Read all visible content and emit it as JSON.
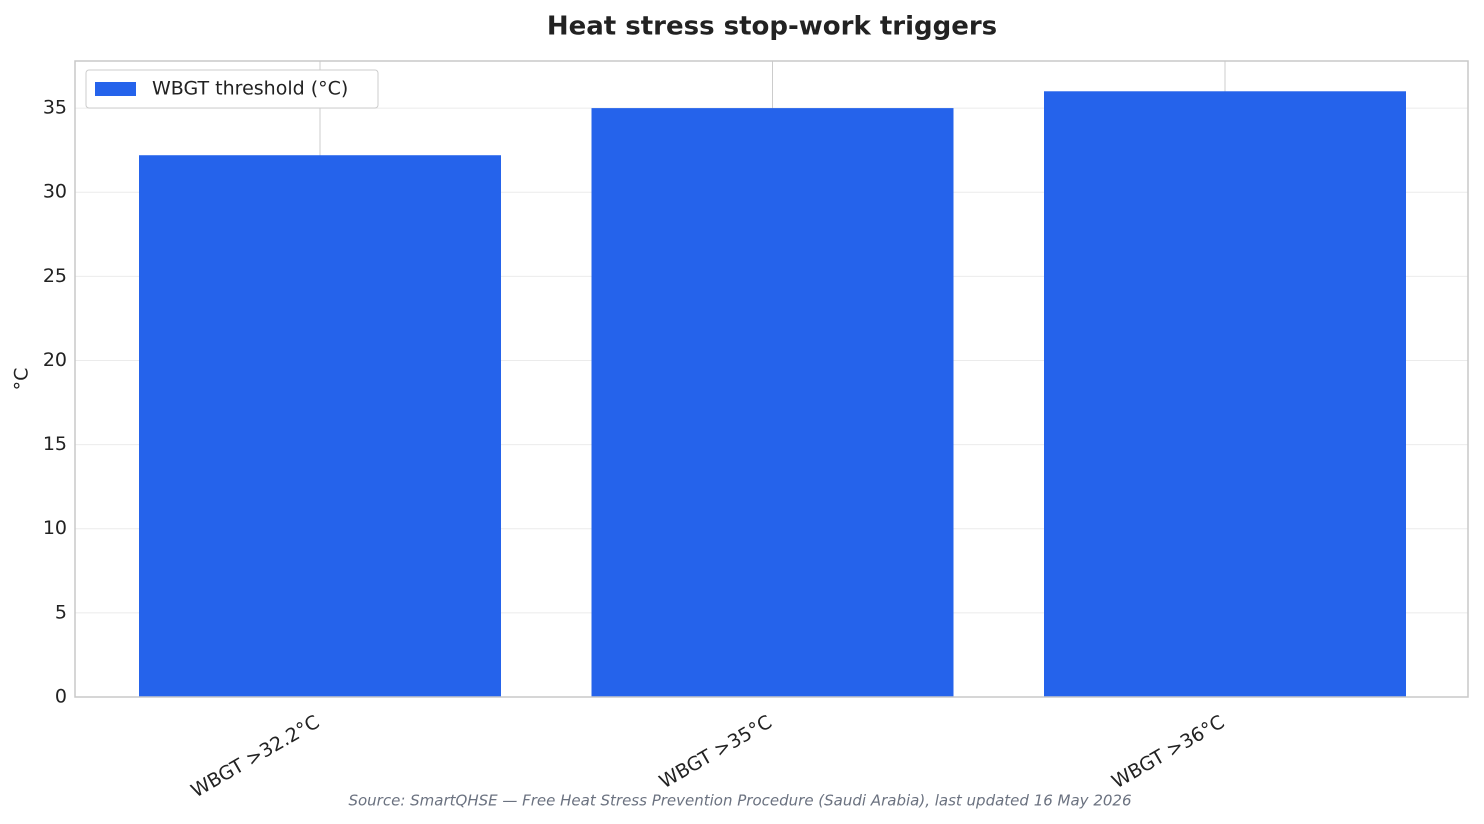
{
  "chart_data": {
    "type": "bar",
    "title": "Heat stress stop-work triggers",
    "ylabel": "°C",
    "categories": [
      "WBGT >32.2°C",
      "WBGT >35°C",
      "WBGT >36°C"
    ],
    "series": [
      {
        "name": "WBGT threshold (°C)",
        "color": "#2563eb",
        "values": [
          32.2,
          35,
          36
        ]
      }
    ],
    "ylim": [
      0,
      37.8
    ],
    "yticks": [
      0,
      5,
      10,
      15,
      20,
      25,
      30,
      35
    ],
    "grid": true,
    "legend": "upper left",
    "caption": "Source: SmartQHSE — Free Heat Stress Prevention Procedure (Saudi Arabia), last updated 16 May 2026"
  }
}
